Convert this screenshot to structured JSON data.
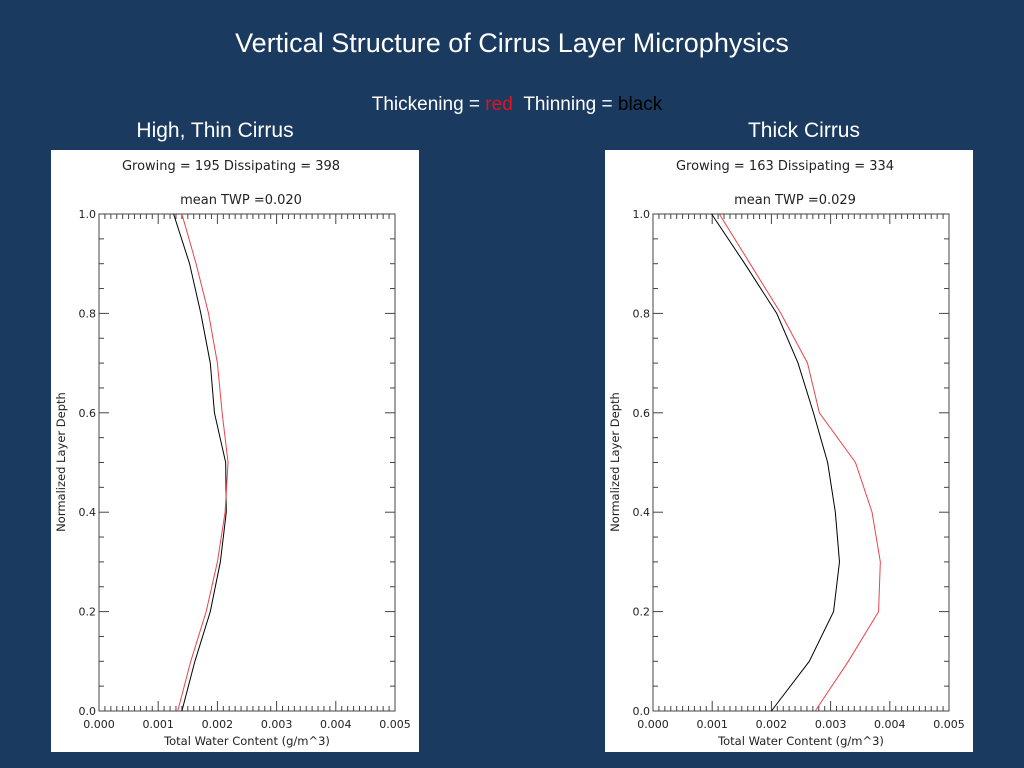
{
  "slide": {
    "title": "Vertical Structure of Cirrus Layer Microphysics",
    "legend_prefix_1": "Thickening = ",
    "legend_red": "red",
    "legend_prefix_2": "Thinning = ",
    "legend_black": "black"
  },
  "colors": {
    "background": "#1b3a5f",
    "thickening": "#e8444c",
    "thinning": "#000000"
  },
  "chart_data": [
    {
      "type": "line",
      "panel_title": "High, Thin Cirrus",
      "header": "Growing = 195  Dissipating = 398",
      "subtitle": "mean TWP =0.020",
      "xlabel": "Total Water Content (g/m^3)",
      "ylabel": "Normalized Layer Depth",
      "xlim": [
        0,
        0.005
      ],
      "ylim": [
        0,
        1
      ],
      "xticks": [
        "0.000",
        "0.001",
        "0.002",
        "0.003",
        "0.004",
        "0.005"
      ],
      "yticks": [
        "0.0",
        "0.2",
        "0.4",
        "0.6",
        "0.8",
        "1.0"
      ],
      "y": [
        0.0,
        0.1,
        0.2,
        0.3,
        0.4,
        0.5,
        0.6,
        0.7,
        0.8,
        0.9,
        1.0
      ],
      "series": [
        {
          "name": "Thinning",
          "color": "#000000",
          "values": [
            0.0014,
            0.00162,
            0.00188,
            0.00205,
            0.00215,
            0.00214,
            0.00195,
            0.00188,
            0.00172,
            0.00153,
            0.00126
          ]
        },
        {
          "name": "Thickening",
          "color": "#e8444c",
          "values": [
            0.00133,
            0.00155,
            0.00181,
            0.002,
            0.00213,
            0.00218,
            0.00208,
            0.002,
            0.00185,
            0.00164,
            0.0014
          ]
        }
      ]
    },
    {
      "type": "line",
      "panel_title": "Thick Cirrus",
      "header": "Growing = 163  Dissipating = 334",
      "subtitle": "mean TWP =0.029",
      "xlabel": "Total Water Content (g/m^3)",
      "ylabel": "Normalized Layer Depth",
      "xlim": [
        0,
        0.005
      ],
      "ylim": [
        0,
        1
      ],
      "xticks": [
        "0.000",
        "0.001",
        "0.002",
        "0.003",
        "0.004",
        "0.005"
      ],
      "yticks": [
        "0.0",
        "0.2",
        "0.4",
        "0.6",
        "0.8",
        "1.0"
      ],
      "y": [
        0.0,
        0.1,
        0.2,
        0.3,
        0.4,
        0.5,
        0.6,
        0.7,
        0.8,
        0.9,
        1.0
      ],
      "series": [
        {
          "name": "Thinning",
          "color": "#000000",
          "values": [
            0.002,
            0.00264,
            0.00305,
            0.00315,
            0.00308,
            0.00295,
            0.00271,
            0.00245,
            0.00209,
            0.00155,
            0.00099
          ]
        },
        {
          "name": "Thickening",
          "color": "#e8444c",
          "values": [
            0.00274,
            0.0033,
            0.00381,
            0.00384,
            0.0037,
            0.00342,
            0.00281,
            0.00261,
            0.00216,
            0.00164,
            0.00112
          ]
        }
      ]
    }
  ]
}
